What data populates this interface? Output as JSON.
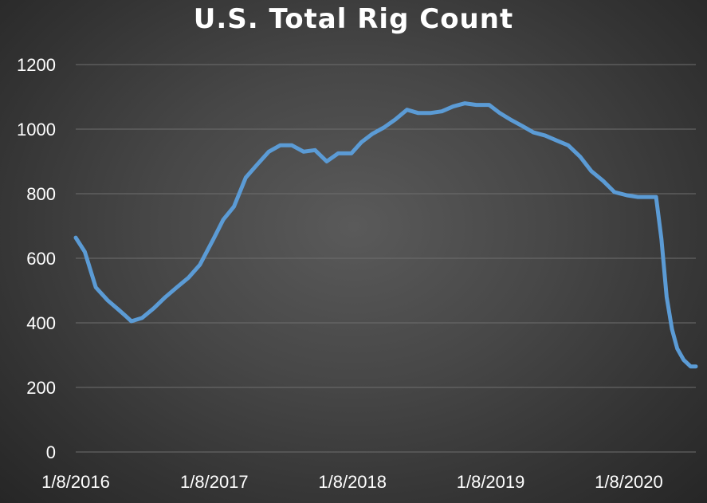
{
  "chart_data": {
    "type": "line",
    "title": "U.S. Total Rig Count",
    "xlabel": "",
    "ylabel": "",
    "ylim": [
      0,
      1200
    ],
    "y_ticks": [
      "0",
      "200",
      "400",
      "600",
      "800",
      "1000",
      "1200"
    ],
    "x_ticks": [
      "1/8/2016",
      "1/8/2017",
      "1/8/2018",
      "1/8/2019",
      "1/8/2020"
    ],
    "x_range": [
      "2016-01-08",
      "2020-07-03"
    ],
    "grid": "horizontal",
    "line_color": "#5b9bd5",
    "series": [
      {
        "x": [
          "2016-01-08",
          "2016-02-01",
          "2016-03-01",
          "2016-04-01",
          "2016-05-01",
          "2016-05-20",
          "2016-06-03",
          "2016-07-01",
          "2016-08-01",
          "2016-09-01",
          "2016-10-01",
          "2016-11-01",
          "2016-12-01",
          "2017-01-06",
          "2017-02-01",
          "2017-03-01",
          "2017-04-01",
          "2017-05-01",
          "2017-06-01",
          "2017-07-01",
          "2017-08-01",
          "2017-09-01",
          "2017-10-01",
          "2017-11-01",
          "2017-12-01",
          "2018-01-05",
          "2018-02-01",
          "2018-03-01",
          "2018-04-01",
          "2018-05-01",
          "2018-06-01",
          "2018-07-01",
          "2018-08-01",
          "2018-09-01",
          "2018-10-01",
          "2018-11-01",
          "2018-12-01",
          "2019-01-04",
          "2019-02-01",
          "2019-03-01",
          "2019-04-01",
          "2019-05-01",
          "2019-06-01",
          "2019-07-01",
          "2019-08-01",
          "2019-09-01",
          "2019-10-01",
          "2019-11-01",
          "2019-12-01",
          "2020-01-03",
          "2020-02-01",
          "2020-03-06",
          "2020-03-20",
          "2020-04-03",
          "2020-04-17",
          "2020-05-01",
          "2020-05-15",
          "2020-06-01",
          "2020-06-19",
          "2020-07-03"
        ],
        "values": [
          664,
          620,
          510,
          470,
          440,
          420,
          405,
          415,
          445,
          480,
          510,
          540,
          580,
          660,
          720,
          760,
          850,
          890,
          930,
          950,
          950,
          930,
          935,
          900,
          925,
          925,
          960,
          985,
          1005,
          1030,
          1060,
          1050,
          1050,
          1055,
          1070,
          1080,
          1075,
          1075,
          1050,
          1030,
          1010,
          990,
          980,
          965,
          950,
          915,
          870,
          840,
          805,
          795,
          790,
          790,
          790,
          660,
          480,
          380,
          320,
          285,
          265,
          265
        ]
      }
    ]
  }
}
